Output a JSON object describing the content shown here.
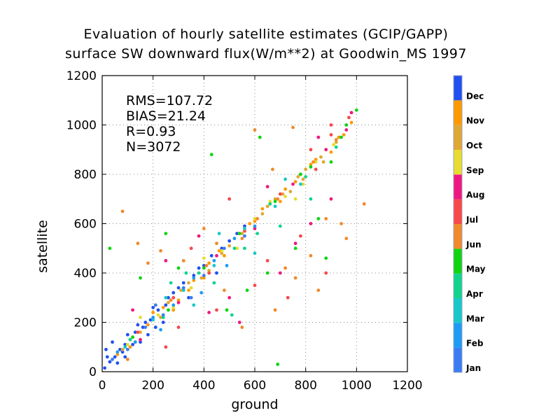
{
  "chart_data": {
    "type": "scatter",
    "title": "Evaluation of hourly satellite estimates (GCIP/GAPP)",
    "subtitle": "surface SW downward flux(W/m**2) at Goodwin_MS 1997",
    "xlabel": "ground",
    "ylabel": "satellite",
    "xlim": [
      0,
      1200
    ],
    "ylim": [
      0,
      1200
    ],
    "xticks": [
      "0",
      "200",
      "400",
      "600",
      "800",
      "1000",
      "1200"
    ],
    "yticks": [
      "0",
      "200",
      "400",
      "600",
      "800",
      "1000",
      "1200"
    ],
    "grid": true,
    "stats": [
      "RMS=107.72",
      "BIAS=21.24",
      "R=0.93",
      "N=3072"
    ],
    "colorbar": {
      "placement": "right",
      "labels": [
        "Jan",
        "Feb",
        "Mar",
        "Apr",
        "May",
        "Jun",
        "Jul",
        "Aug",
        "Sep",
        "Oct",
        "Nov",
        "Dec"
      ],
      "colors": [
        "#3a7cf2",
        "#1e9bf5",
        "#18c8c8",
        "#10d48c",
        "#10d410",
        "#f08a2a",
        "#f84848",
        "#f01880",
        "#e8dc30",
        "#e0a830",
        "#ff9900",
        "#2050f0"
      ]
    },
    "series": [
      {
        "month": "Dec",
        "color": "#2050f0",
        "points": [
          [
            10,
            15
          ],
          [
            30,
            40
          ],
          [
            50,
            60
          ],
          [
            70,
            90
          ],
          [
            90,
            110
          ],
          [
            110,
            130
          ],
          [
            130,
            160
          ],
          [
            160,
            180
          ],
          [
            190,
            210
          ],
          [
            220,
            250
          ],
          [
            250,
            270
          ],
          [
            280,
            320
          ],
          [
            320,
            360
          ],
          [
            360,
            390
          ],
          [
            400,
            430
          ],
          [
            430,
            470
          ],
          [
            470,
            500
          ],
          [
            500,
            530
          ],
          [
            530,
            560
          ],
          [
            560,
            590
          ],
          [
            20,
            60
          ],
          [
            60,
            35
          ],
          [
            100,
            150
          ],
          [
            150,
            120
          ],
          [
            200,
            260
          ],
          [
            240,
            200
          ],
          [
            300,
            340
          ],
          [
            340,
            300
          ],
          [
            380,
            420
          ],
          [
            450,
            400
          ],
          [
            80,
            80
          ],
          [
            120,
            110
          ],
          [
            170,
            200
          ],
          [
            210,
            180
          ],
          [
            260,
            300
          ],
          [
            15,
            90
          ],
          [
            40,
            120
          ],
          [
            90,
            60
          ],
          [
            140,
            190
          ],
          [
            180,
            150
          ]
        ]
      },
      {
        "month": "Nov",
        "color": "#ff9900",
        "points": [
          [
            60,
            70
          ],
          [
            110,
            100
          ],
          [
            180,
            190
          ],
          [
            240,
            260
          ],
          [
            300,
            290
          ],
          [
            360,
            370
          ],
          [
            420,
            440
          ],
          [
            480,
            470
          ],
          [
            540,
            560
          ],
          [
            600,
            610
          ],
          [
            660,
            680
          ],
          [
            720,
            740
          ],
          [
            780,
            800
          ],
          [
            840,
            860
          ],
          [
            900,
            890
          ],
          [
            950,
            960
          ],
          [
            200,
            240
          ],
          [
            280,
            250
          ],
          [
            400,
            380
          ],
          [
            520,
            540
          ],
          [
            630,
            660
          ],
          [
            700,
            690
          ],
          [
            760,
            770
          ],
          [
            820,
            840
          ],
          [
            880,
            900
          ],
          [
            930,
            950
          ],
          [
            980,
            1010
          ],
          [
            340,
            330
          ],
          [
            460,
            490
          ],
          [
            580,
            600
          ]
        ]
      },
      {
        "month": "Oct",
        "color": "#e0a830",
        "points": [
          [
            80,
            90
          ],
          [
            150,
            160
          ],
          [
            230,
            220
          ],
          [
            310,
            330
          ],
          [
            390,
            380
          ],
          [
            470,
            480
          ],
          [
            550,
            560
          ],
          [
            630,
            640
          ],
          [
            710,
            720
          ],
          [
            790,
            780
          ],
          [
            860,
            870
          ],
          [
            920,
            930
          ],
          [
            120,
            140
          ],
          [
            260,
            280
          ],
          [
            420,
            410
          ],
          [
            560,
            580
          ],
          [
            680,
            700
          ],
          [
            740,
            730
          ],
          [
            800,
            820
          ],
          [
            870,
            850
          ],
          [
            340,
            360
          ],
          [
            500,
            510
          ],
          [
            600,
            590
          ],
          [
            650,
            670
          ],
          [
            770,
            790
          ]
        ]
      },
      {
        "month": "Sep",
        "color": "#e8dc30",
        "points": [
          [
            100,
            110
          ],
          [
            220,
            230
          ],
          [
            350,
            340
          ],
          [
            470,
            490
          ],
          [
            600,
            620
          ],
          [
            720,
            710
          ],
          [
            840,
            850
          ],
          [
            910,
            920
          ],
          [
            280,
            260
          ],
          [
            530,
            500
          ],
          [
            660,
            690
          ],
          [
            790,
            760
          ],
          [
            150,
            220
          ],
          [
            400,
            460
          ],
          [
            760,
            700
          ]
        ]
      },
      {
        "month": "Aug",
        "color": "#f01880",
        "points": [
          [
            150,
            130
          ],
          [
            300,
            280
          ],
          [
            450,
            470
          ],
          [
            600,
            580
          ],
          [
            750,
            760
          ],
          [
            880,
            900
          ],
          [
            960,
            980
          ],
          [
            500,
            300
          ],
          [
            700,
            400
          ],
          [
            820,
            600
          ],
          [
            380,
            550
          ],
          [
            250,
            450
          ],
          [
            900,
            700
          ],
          [
            650,
            750
          ],
          [
            980,
            1050
          ],
          [
            120,
            250
          ],
          [
            540,
            200
          ],
          [
            760,
            520
          ],
          [
            420,
            240
          ],
          [
            850,
            950
          ]
        ]
      },
      {
        "month": "Jul",
        "color": "#f84848",
        "points": [
          [
            140,
            160
          ],
          [
            280,
            300
          ],
          [
            420,
            400
          ],
          [
            560,
            570
          ],
          [
            700,
            720
          ],
          [
            840,
            820
          ],
          [
            900,
            960
          ],
          [
            600,
            350
          ],
          [
            450,
            250
          ],
          [
            780,
            550
          ],
          [
            350,
            500
          ],
          [
            900,
            1000
          ],
          [
            820,
            900
          ],
          [
            650,
            450
          ],
          [
            250,
            100
          ],
          [
            500,
            700
          ],
          [
            970,
            1030
          ],
          [
            730,
            300
          ],
          [
            880,
            400
          ],
          [
            300,
            180
          ]
        ]
      },
      {
        "month": "Jun",
        "color": "#f08a2a",
        "points": [
          [
            130,
            120
          ],
          [
            270,
            290
          ],
          [
            410,
            430
          ],
          [
            550,
            540
          ],
          [
            690,
            700
          ],
          [
            830,
            850
          ],
          [
            920,
            940
          ],
          [
            680,
            250
          ],
          [
            550,
            180
          ],
          [
            760,
            380
          ],
          [
            400,
            580
          ],
          [
            320,
            450
          ],
          [
            880,
            620
          ],
          [
            850,
            330
          ],
          [
            610,
            620
          ],
          [
            1030,
            680
          ],
          [
            750,
            990
          ],
          [
            480,
            330
          ],
          [
            600,
            980
          ],
          [
            960,
            540
          ],
          [
            80,
            650
          ],
          [
            140,
            520
          ],
          [
            230,
            490
          ],
          [
            720,
            420
          ],
          [
            940,
            600
          ],
          [
            100,
            50
          ],
          [
            180,
            440
          ],
          [
            450,
            520
          ],
          [
            820,
            470
          ],
          [
            670,
            820
          ]
        ]
      },
      {
        "month": "May",
        "color": "#10d410",
        "points": [
          [
            120,
            140
          ],
          [
            260,
            250
          ],
          [
            400,
            420
          ],
          [
            540,
            560
          ],
          [
            680,
            690
          ],
          [
            820,
            830
          ],
          [
            940,
            950
          ],
          [
            1000,
            1060
          ],
          [
            490,
            250
          ],
          [
            690,
            30
          ],
          [
            900,
            850
          ],
          [
            760,
            500
          ],
          [
            250,
            560
          ],
          [
            300,
            420
          ],
          [
            570,
            330
          ],
          [
            30,
            500
          ],
          [
            850,
            620
          ],
          [
            620,
            950
          ],
          [
            880,
            460
          ],
          [
            150,
            380
          ],
          [
            650,
            400
          ],
          [
            430,
            880
          ],
          [
            780,
            800
          ],
          [
            960,
            1000
          ]
        ]
      },
      {
        "month": "Apr",
        "color": "#10d48c",
        "points": [
          [
            110,
            130
          ],
          [
            240,
            220
          ],
          [
            380,
            400
          ],
          [
            520,
            500
          ],
          [
            660,
            680
          ],
          [
            800,
            790
          ],
          [
            920,
            910
          ],
          [
            560,
            500
          ],
          [
            440,
            360
          ],
          [
            700,
            590
          ],
          [
            330,
            400
          ],
          [
            820,
            700
          ],
          [
            270,
            360
          ],
          [
            610,
            560
          ],
          [
            510,
            230
          ]
        ]
      },
      {
        "month": "Mar",
        "color": "#18c8c8",
        "points": [
          [
            90,
            100
          ],
          [
            200,
            210
          ],
          [
            320,
            330
          ],
          [
            440,
            430
          ],
          [
            560,
            580
          ],
          [
            680,
            670
          ],
          [
            780,
            760
          ],
          [
            360,
            270
          ],
          [
            460,
            560
          ],
          [
            600,
            480
          ],
          [
            250,
            300
          ],
          [
            720,
            780
          ]
        ]
      },
      {
        "month": "Feb",
        "color": "#1e9bf5",
        "points": [
          [
            60,
            80
          ],
          [
            130,
            120
          ],
          [
            200,
            220
          ],
          [
            280,
            270
          ],
          [
            360,
            380
          ],
          [
            440,
            450
          ],
          [
            520,
            540
          ],
          [
            600,
            590
          ],
          [
            230,
            170
          ],
          [
            390,
            320
          ],
          [
            490,
            430
          ]
        ]
      },
      {
        "month": "Jan",
        "color": "#3a7cf2",
        "points": [
          [
            40,
            50
          ],
          [
            100,
            90
          ],
          [
            170,
            180
          ],
          [
            240,
            230
          ],
          [
            320,
            340
          ],
          [
            400,
            390
          ],
          [
            480,
            500
          ],
          [
            560,
            550
          ],
          [
            210,
            270
          ],
          [
            350,
            300
          ]
        ]
      }
    ]
  }
}
